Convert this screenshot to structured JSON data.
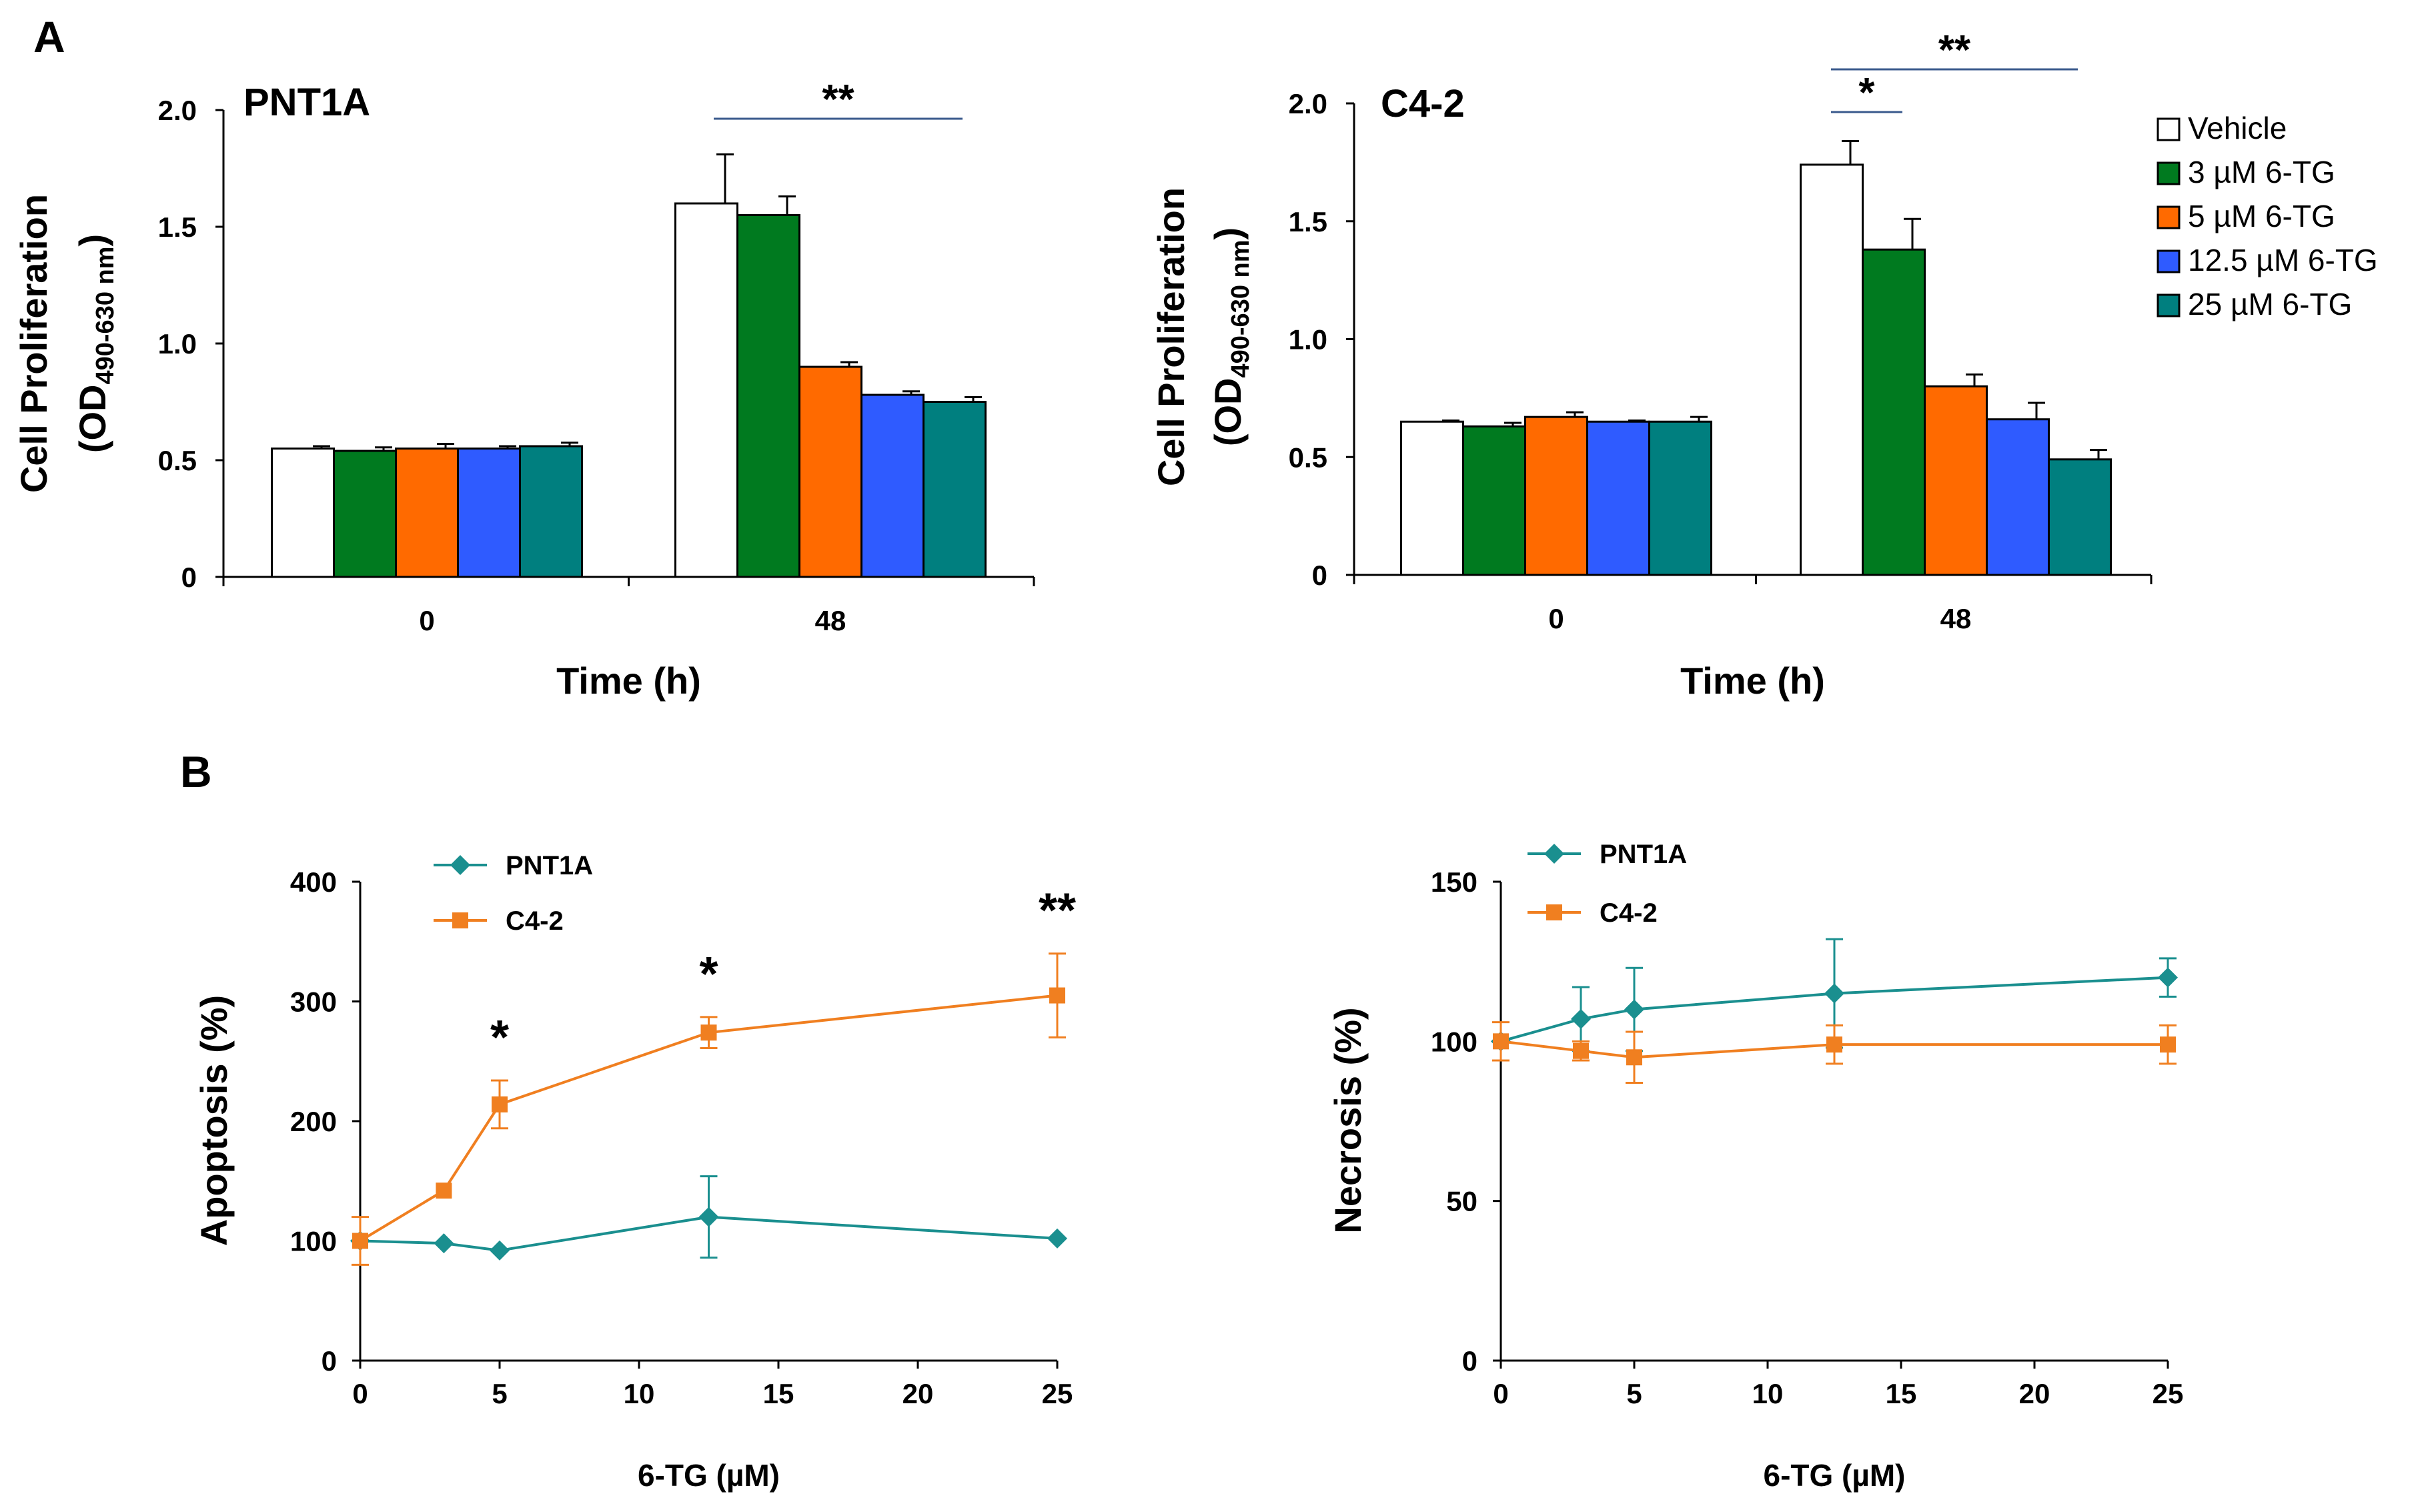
{
  "panel_labels": {
    "a": "A",
    "b": "B"
  },
  "colors": {
    "vehicle": "#ffffff",
    "tg3": "#007a1f",
    "tg5": "#ff6a00",
    "tg12_5": "#2f5bff",
    "tg25": "#007f7f",
    "pnt1a_line": "#1a8f8f",
    "c42_line": "#f07f20",
    "sig_line": "#3a5a8c"
  },
  "chart_data": [
    {
      "type": "bar",
      "title": "PNT1A",
      "xlabel": "Time (h)",
      "ylabel_main": "Cell Proliferation",
      "ylabel_sub_pre": "(OD",
      "ylabel_sub_sub": "490-630 nm",
      "ylabel_sub_post": ")",
      "ylim": [
        0,
        2.0
      ],
      "yticks": [
        "0",
        "0.5",
        "1.0",
        "1.5",
        "2.0"
      ],
      "categories": [
        "0",
        "48"
      ],
      "series": [
        {
          "name": "Vehicle",
          "values": [
            0.55,
            1.6
          ],
          "errors": [
            0.01,
            0.21
          ]
        },
        {
          "name": "3 µM 6-TG",
          "values": [
            0.54,
            1.55
          ],
          "errors": [
            0.015,
            0.08
          ]
        },
        {
          "name": "5 µM 6-TG",
          "values": [
            0.55,
            0.9
          ],
          "errors": [
            0.02,
            0.02
          ]
        },
        {
          "name": "12.5 µM 6-TG",
          "values": [
            0.55,
            0.78
          ],
          "errors": [
            0.01,
            0.015
          ]
        },
        {
          "name": "25 µM 6-TG",
          "values": [
            0.56,
            0.75
          ],
          "errors": [
            0.015,
            0.02
          ]
        }
      ],
      "annotations": [
        {
          "label": "**",
          "from_group": "48",
          "from_series": 0,
          "to_series": 4
        }
      ]
    },
    {
      "type": "bar",
      "title": "C4-2",
      "xlabel": "Time (h)",
      "ylabel_main": "Cell Proliferation",
      "ylabel_sub_pre": "(OD",
      "ylabel_sub_sub": "490-630 nm",
      "ylabel_sub_post": ")",
      "ylim": [
        0,
        2.0
      ],
      "yticks": [
        "0",
        "0.5",
        "1.0",
        "1.5",
        "2.0"
      ],
      "categories": [
        "0",
        "48"
      ],
      "series": [
        {
          "name": "Vehicle",
          "values": [
            0.65,
            1.74
          ],
          "errors": [
            0.005,
            0.1
          ]
        },
        {
          "name": "3 µM 6-TG",
          "values": [
            0.63,
            1.38
          ],
          "errors": [
            0.015,
            0.13
          ]
        },
        {
          "name": "5 µM 6-TG",
          "values": [
            0.67,
            0.8
          ],
          "errors": [
            0.02,
            0.05
          ]
        },
        {
          "name": "12.5 µM 6-TG",
          "values": [
            0.65,
            0.66
          ],
          "errors": [
            0.005,
            0.07
          ]
        },
        {
          "name": "25 µM 6-TG",
          "values": [
            0.65,
            0.49
          ],
          "errors": [
            0.02,
            0.04
          ]
        }
      ],
      "annotations": [
        {
          "label": "*",
          "from_series": 0,
          "to_series": 1
        },
        {
          "label": "**",
          "from_series": 0,
          "to_series": 4
        }
      ],
      "legend": [
        "Vehicle",
        "3 µM 6-TG",
        " 5 µM 6-TG",
        "12.5 µM 6-TG",
        "25 µM 6-TG"
      ]
    },
    {
      "type": "line",
      "xlabel": "6-TG (µM)",
      "ylabel": "Apoptosis (%)",
      "xlim": [
        0,
        25
      ],
      "ylim": [
        0,
        400
      ],
      "xticks": [
        "0",
        "5",
        "10",
        "15",
        "20",
        "25"
      ],
      "yticks": [
        "0",
        "100",
        "200",
        "300",
        "400"
      ],
      "x": [
        0,
        3,
        5,
        12.5,
        25
      ],
      "series": [
        {
          "name": "PNT1A",
          "values": [
            100,
            98,
            92,
            120,
            102
          ],
          "errors": [
            0,
            0,
            0,
            34,
            0
          ],
          "marker": "diamond"
        },
        {
          "name": "C4-2",
          "values": [
            100,
            142,
            214,
            274,
            305
          ],
          "errors": [
            20,
            0,
            20,
            13,
            35
          ],
          "marker": "square"
        }
      ],
      "annotations": [
        {
          "label": "*",
          "x": 5
        },
        {
          "label": "*",
          "x": 12.5
        },
        {
          "label": "**",
          "x": 25
        }
      ]
    },
    {
      "type": "line",
      "xlabel": "6-TG (µM)",
      "ylabel": "Necrosis (%)",
      "xlim": [
        0,
        25
      ],
      "ylim": [
        0,
        150
      ],
      "xticks": [
        "0",
        "5",
        "10",
        "15",
        "20",
        "25"
      ],
      "yticks": [
        "0",
        "50",
        "100",
        "150"
      ],
      "x": [
        0,
        3,
        5,
        12.5,
        25
      ],
      "series": [
        {
          "name": "PNT1A",
          "values": [
            100,
            107,
            110,
            115,
            120
          ],
          "errors": [
            0,
            10,
            13,
            17,
            6
          ],
          "marker": "diamond"
        },
        {
          "name": "C4-2",
          "values": [
            100,
            97,
            95,
            99,
            99
          ],
          "errors": [
            6,
            3,
            8,
            6,
            6
          ],
          "marker": "square"
        }
      ]
    }
  ]
}
